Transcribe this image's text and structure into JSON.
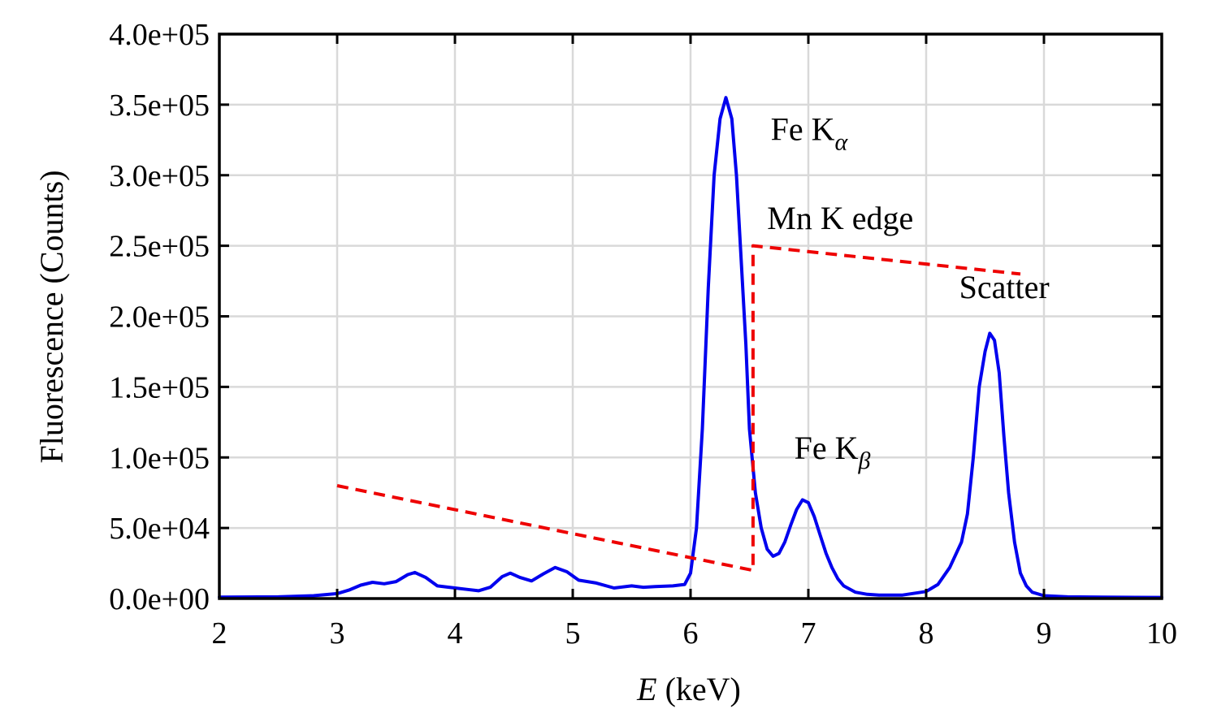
{
  "chart_data": {
    "type": "line",
    "title": "",
    "xlabel_var": "E",
    "xlabel_unit": " (keV)",
    "ylabel": "Fluorescence (Counts)",
    "xlim": [
      2,
      10
    ],
    "ylim": [
      0,
      400000
    ],
    "xticks": [
      2,
      3,
      4,
      5,
      6,
      7,
      8,
      9,
      10
    ],
    "yticks": [
      0,
      50000,
      100000,
      150000,
      200000,
      250000,
      300000,
      350000,
      400000
    ],
    "xtick_labels": [
      "2",
      "3",
      "4",
      "5",
      "6",
      "7",
      "8",
      "9",
      "10"
    ],
    "ytick_labels": [
      "0.0e+00",
      "5.0e+04",
      "1.0e+05",
      "1.5e+05",
      "2.0e+05",
      "2.5e+05",
      "3.0e+05",
      "3.5e+05",
      "4.0e+05"
    ],
    "grid": true,
    "series": [
      {
        "color": "#0000ee",
        "style": "solid",
        "x": [
          2.0,
          2.5,
          2.8,
          3.0,
          3.1,
          3.2,
          3.3,
          3.4,
          3.5,
          3.6,
          3.66,
          3.75,
          3.85,
          4.0,
          4.1,
          4.2,
          4.3,
          4.4,
          4.47,
          4.55,
          4.65,
          4.75,
          4.85,
          4.95,
          5.05,
          5.2,
          5.35,
          5.5,
          5.6,
          5.7,
          5.85,
          5.95,
          6.0,
          6.05,
          6.1,
          6.15,
          6.2,
          6.25,
          6.3,
          6.35,
          6.39,
          6.43,
          6.47,
          6.5,
          6.55,
          6.6,
          6.65,
          6.7,
          6.75,
          6.8,
          6.85,
          6.9,
          6.95,
          7.0,
          7.05,
          7.1,
          7.15,
          7.2,
          7.25,
          7.3,
          7.4,
          7.5,
          7.6,
          7.8,
          8.0,
          8.1,
          8.2,
          8.3,
          8.35,
          8.4,
          8.45,
          8.5,
          8.54,
          8.58,
          8.62,
          8.66,
          8.7,
          8.75,
          8.8,
          8.85,
          8.9,
          9.0,
          9.2,
          9.5,
          10.0
        ],
        "y": [
          1000,
          1200,
          2000,
          3500,
          6000,
          9500,
          11500,
          10500,
          12000,
          17000,
          18500,
          15000,
          9000,
          7500,
          6500,
          5500,
          8000,
          15500,
          18000,
          15000,
          12500,
          17500,
          22000,
          19000,
          13000,
          11000,
          7500,
          9000,
          8000,
          8500,
          9000,
          10000,
          18000,
          50000,
          120000,
          220000,
          300000,
          340000,
          355000,
          340000,
          300000,
          240000,
          180000,
          120000,
          75000,
          50000,
          35000,
          30000,
          32000,
          40000,
          52000,
          63000,
          70000,
          68000,
          58000,
          45000,
          32000,
          22000,
          14000,
          9000,
          4500,
          3000,
          2500,
          2500,
          5000,
          10000,
          22000,
          40000,
          60000,
          100000,
          150000,
          175000,
          188000,
          183000,
          160000,
          115000,
          75000,
          40000,
          18000,
          9000,
          4500,
          2000,
          1200,
          1000,
          800
        ]
      },
      {
        "color": "#ee0000",
        "style": "dashed",
        "x": [
          3.0,
          6.53,
          6.53,
          8.8
        ],
        "y": [
          80000,
          20000,
          250000,
          230000
        ]
      }
    ],
    "annotations": [
      {
        "element": "Fe",
        "line": "K",
        "subscript": "α",
        "x": 6.68,
        "y": 325000
      },
      {
        "text": "Mn K edge",
        "x": 6.65,
        "y": 262000
      },
      {
        "text": "Scatter",
        "x": 8.28,
        "y": 213000
      },
      {
        "element": "Fe",
        "line": "K",
        "subscript": "β",
        "x": 6.88,
        "y": 99000
      }
    ]
  }
}
